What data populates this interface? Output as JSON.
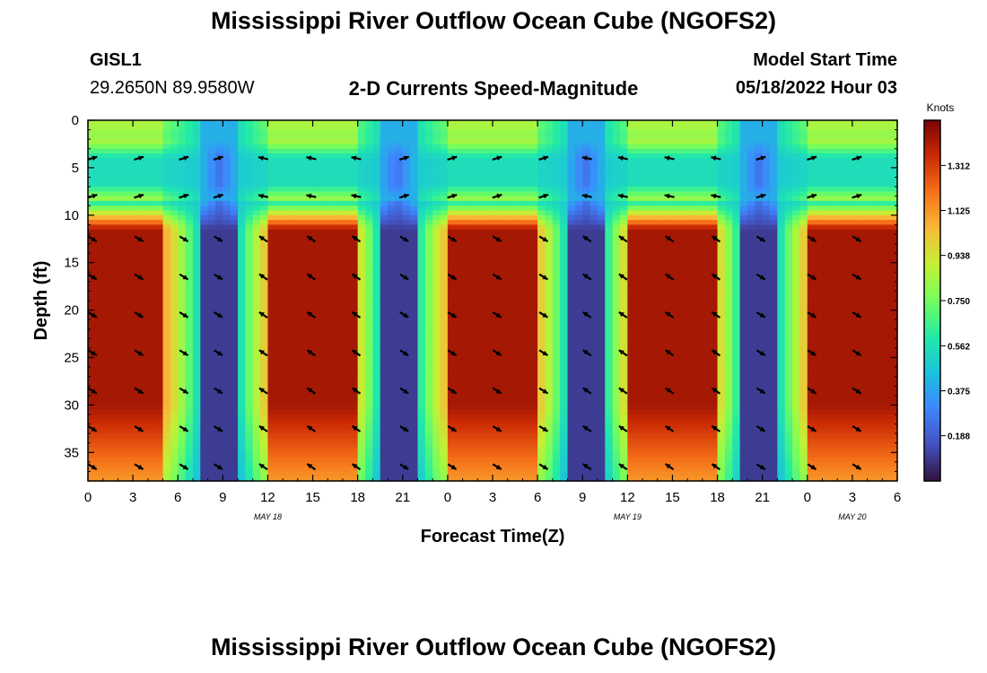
{
  "page": {
    "title": "Mississippi River Outflow Ocean Cube (NGOFS2)",
    "title_repeat": "Mississippi River Outflow Ocean Cube (NGOFS2)",
    "station": "GISL1",
    "coords": "29.2650N  89.9580W",
    "subtitle": "2-D Currents Speed-Magnitude",
    "model_start_label": "Model Start Time",
    "model_start_value": "05/18/2022 Hour 03"
  },
  "chart_data": {
    "type": "heatmap",
    "title": "2-D Currents Speed-Magnitude",
    "xlabel": "Forecast Time(Z)",
    "ylabel": "Depth (ft)",
    "x_range_hours": [
      0,
      54
    ],
    "x_ticks": [
      {
        "hour": 0,
        "label": "0"
      },
      {
        "hour": 3,
        "label": "3"
      },
      {
        "hour": 6,
        "label": "6"
      },
      {
        "hour": 9,
        "label": "9"
      },
      {
        "hour": 12,
        "label": "12"
      },
      {
        "hour": 15,
        "label": "15"
      },
      {
        "hour": 18,
        "label": "18"
      },
      {
        "hour": 21,
        "label": "21"
      },
      {
        "hour": 24,
        "label": "0"
      },
      {
        "hour": 27,
        "label": "3"
      },
      {
        "hour": 30,
        "label": "6"
      },
      {
        "hour": 33,
        "label": "9"
      },
      {
        "hour": 36,
        "label": "12"
      },
      {
        "hour": 39,
        "label": "15"
      },
      {
        "hour": 42,
        "label": "18"
      },
      {
        "hour": 45,
        "label": "21"
      },
      {
        "hour": 48,
        "label": "0"
      },
      {
        "hour": 51,
        "label": "3"
      },
      {
        "hour": 54,
        "label": "6"
      }
    ],
    "date_labels": [
      {
        "hour": 12,
        "label": "MAY 18"
      },
      {
        "hour": 36,
        "label": "MAY 19"
      },
      {
        "hour": 51,
        "label": "MAY 20"
      }
    ],
    "y_range_ft": [
      0,
      38
    ],
    "y_inverted": true,
    "y_ticks": [
      0,
      5,
      10,
      15,
      20,
      25,
      30,
      35
    ],
    "colorbar": {
      "title": "Knots",
      "range": [
        0,
        1.5
      ],
      "ticks": [
        "1.312",
        "1.125",
        "0.938",
        "0.750",
        "0.562",
        "0.375",
        "0.188"
      ],
      "tick_values": [
        1.312,
        1.125,
        0.938,
        0.75,
        0.562,
        0.375,
        0.188
      ]
    },
    "speed_minima_hours": [
      8.8,
      20.6,
      33.2,
      44.8
    ],
    "speed_maxima_hours": [
      2,
      15,
      27,
      39,
      51
    ],
    "max_speed_knots": 1.42,
    "vector_times_hours": [
      0.3,
      3.4,
      6.4,
      8.7,
      11.7,
      14.9,
      17.9,
      21.1,
      24.3,
      27.3,
      30.4,
      33.3,
      35.7,
      38.8,
      41.9,
      44.9,
      48.3,
      51.3
    ],
    "vector_depths_ft": [
      4,
      8,
      12.5,
      16.5,
      20.5,
      24.5,
      28.5,
      32.5,
      36.5
    ]
  }
}
